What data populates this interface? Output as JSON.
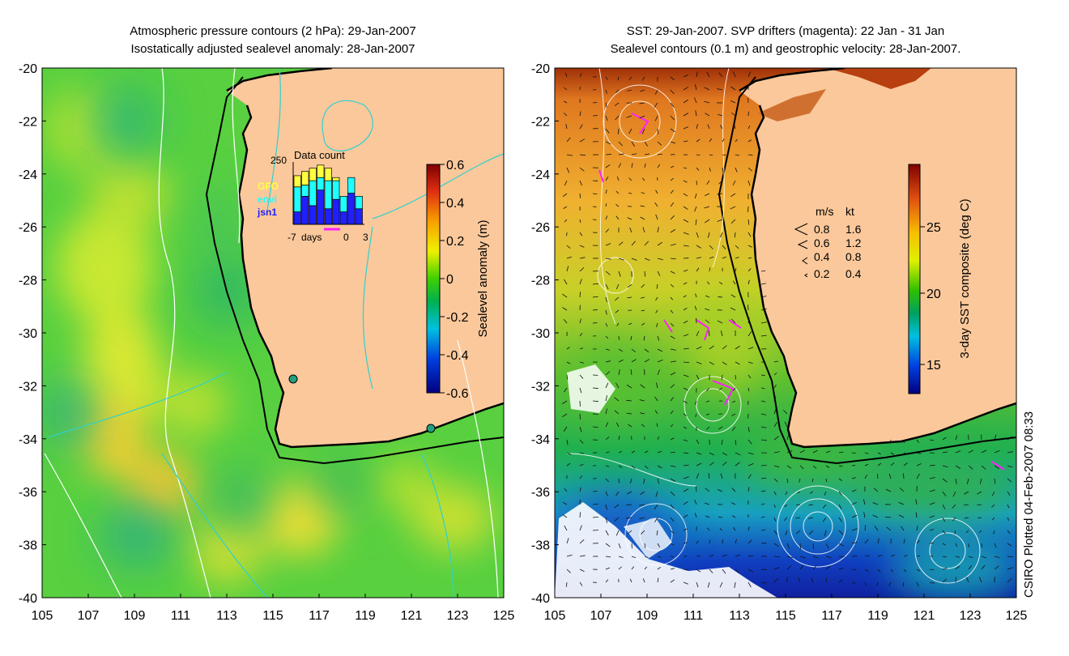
{
  "left_panel": {
    "title_line1": "Atmospheric pressure contours (2 hPa): 29-Jan-2007",
    "title_line2": "Isostatically adjusted sealevel anomaly: 28-Jan-2007",
    "colorbar": {
      "label": "Sealevel anomaly (m)",
      "ticks": [
        "0.6",
        "0.4",
        "0.2",
        "0",
        "-0.2",
        "-0.4",
        "-0.6"
      ]
    },
    "inset": {
      "title": "Data count",
      "ymax": "250",
      "legend": [
        {
          "label": "GFO",
          "color": "#ffff40"
        },
        {
          "label": "envi",
          "color": "#20ffff"
        },
        {
          "label": "jsn1",
          "color": "#2020ff"
        }
      ],
      "x_labels": [
        "-7",
        "days",
        "0",
        "3"
      ],
      "bars": [
        {
          "jsn1": 0.2,
          "envi": 0.4,
          "gfo": 0.18
        },
        {
          "jsn1": 0.45,
          "envi": 0.18,
          "gfo": 0.22
        },
        {
          "jsn1": 0.3,
          "envi": 0.4,
          "gfo": 0.2
        },
        {
          "jsn1": 0.55,
          "envi": 0.2,
          "gfo": 0.2
        },
        {
          "jsn1": 0.25,
          "envi": 0.45,
          "gfo": 0.2
        },
        {
          "jsn1": 0.4,
          "envi": 0.3,
          "gfo": 0.05
        },
        {
          "jsn1": 0.2,
          "envi": 0.25,
          "gfo": 0.0
        },
        {
          "jsn1": 0.5,
          "envi": 0.25,
          "gfo": 0.0
        },
        {
          "jsn1": 0.25,
          "envi": 0.2,
          "gfo": 0.0
        }
      ]
    }
  },
  "right_panel": {
    "title_line1": "SST: 29-Jan-2007. SVP drifters (magenta): 22 Jan - 31 Jan",
    "title_line2": "Sealevel contours (0.1 m) and geostrophic velocity: 28-Jan-2007.",
    "colorbar": {
      "label": "3-day SST composite (deg C)",
      "ticks": [
        "25",
        "20",
        "15"
      ]
    },
    "velocity_legend": {
      "header_ms": "m/s",
      "header_kt": "kt",
      "rows": [
        {
          "ms": "0.8",
          "kt": "1.6"
        },
        {
          "ms": "0.6",
          "kt": "1.2"
        },
        {
          "ms": "0.4",
          "kt": "0.8"
        },
        {
          "ms": "0.2",
          "kt": "0.4"
        }
      ]
    }
  },
  "axes": {
    "lat_labels": [
      "-20",
      "-22",
      "-24",
      "-26",
      "-28",
      "-30",
      "-32",
      "-34",
      "-36",
      "-38",
      "-40"
    ],
    "lon_labels": [
      "105",
      "107",
      "109",
      "111",
      "113",
      "115",
      "117",
      "119",
      "121",
      "123",
      "125"
    ]
  },
  "credit": "CSIRO Plotted 04-Feb-2007 08:33",
  "colors": {
    "land": "#fac89b",
    "coast": "#000000",
    "pressure_contour": "#ffffff",
    "drifter": "#ff20ff"
  }
}
